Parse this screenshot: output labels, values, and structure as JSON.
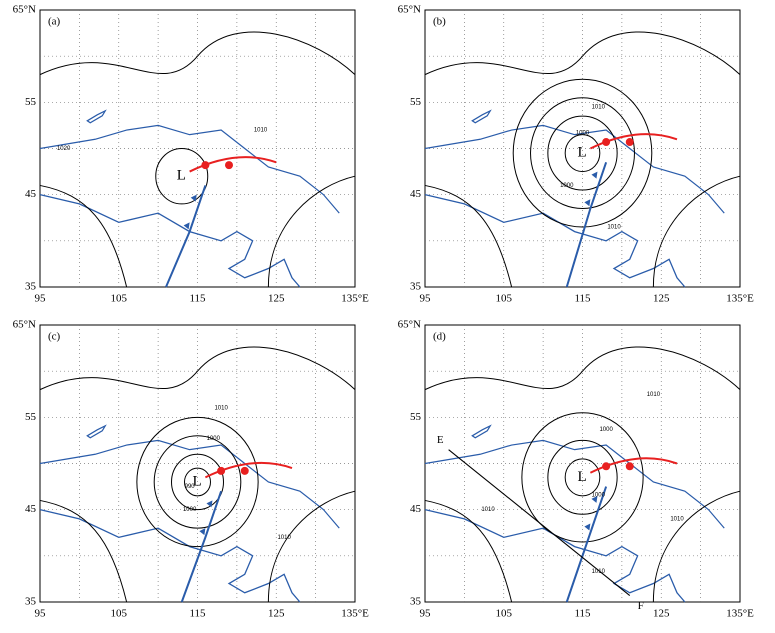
{
  "axes": {
    "y_labels": [
      "65°N",
      "55",
      "45",
      "35"
    ],
    "x_labels": [
      "95",
      "105",
      "115",
      "125",
      "135°E"
    ]
  },
  "panels": [
    {
      "label": "(a)",
      "low": "L",
      "isobar_labels": [
        "1010",
        "1020"
      ]
    },
    {
      "label": "(b)",
      "low": "L",
      "isobar_labels": [
        "1010",
        "1000",
        "1000",
        "1010"
      ]
    },
    {
      "label": "(c)",
      "low": "L",
      "isobar_labels": [
        "1010",
        "1000",
        "990",
        "1000",
        "1010"
      ]
    },
    {
      "label": "(d)",
      "low": "L",
      "isobar_labels": [
        "1010",
        "1000",
        "1000",
        "1010",
        "1010",
        "1010"
      ],
      "section_start": "E",
      "section_end": "F"
    }
  ]
}
